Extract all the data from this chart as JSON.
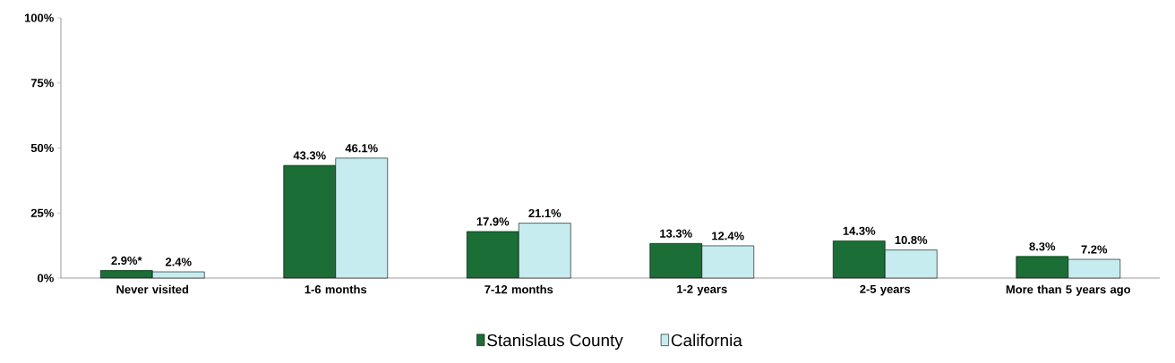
{
  "chart_data": {
    "type": "bar",
    "categories": [
      "Never visited",
      "1-6 months",
      "7-12 months",
      "1-2 years",
      "2-5 years",
      "More than 5 years ago"
    ],
    "series": [
      {
        "name": "Stanislaus County",
        "color": "#1b6e35",
        "values": [
          2.9,
          43.3,
          17.9,
          13.3,
          14.3,
          8.3
        ],
        "value_labels": [
          "2.9%*",
          "43.3%",
          "17.9%",
          "13.3%",
          "14.3%",
          "8.3%"
        ]
      },
      {
        "name": "California",
        "color": "#c6ecef",
        "values": [
          2.4,
          46.1,
          21.1,
          12.4,
          10.8,
          7.2
        ],
        "value_labels": [
          "2.4%",
          "46.1%",
          "21.1%",
          "12.4%",
          "10.8%",
          "7.2%"
        ]
      }
    ],
    "ylim": [
      0,
      100
    ],
    "yticks": [
      {
        "value": 0,
        "label": "0%"
      },
      {
        "value": 25,
        "label": "25%"
      },
      {
        "value": 50,
        "label": "50%"
      },
      {
        "value": 75,
        "label": "75%"
      },
      {
        "value": 100,
        "label": "100%"
      }
    ],
    "grid": false,
    "legend": "bottom"
  }
}
